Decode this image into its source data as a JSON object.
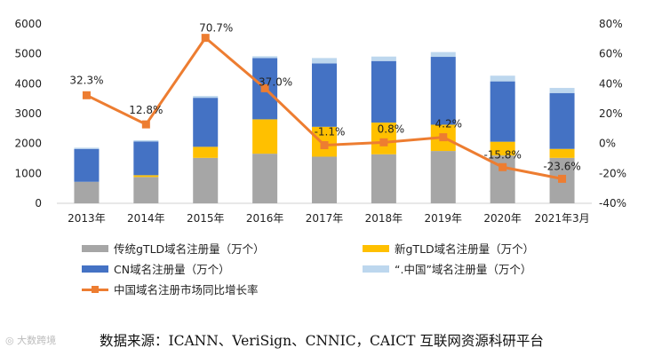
{
  "chart_data": {
    "type": "bar",
    "stacked": true,
    "categories": [
      "2013年",
      "2014年",
      "2015年",
      "2016年",
      "2017年",
      "2018年",
      "2019年",
      "2020年",
      "2021年3月"
    ],
    "series": [
      {
        "name": "传统gTLD域名注册量（万个）",
        "color": "#a6a6a6",
        "values": [
          720,
          880,
          1520,
          1660,
          1560,
          1640,
          1750,
          1600,
          1520
        ]
      },
      {
        "name": "新gTLD域名注册量（万个）",
        "color": "#ffc000",
        "values": [
          0,
          60,
          370,
          1150,
          1000,
          1060,
          880,
          460,
          300
        ]
      },
      {
        "name": "CN域名注册量（万个）",
        "color": "#4472c4",
        "values": [
          1100,
          1130,
          1640,
          2050,
          2120,
          2060,
          2270,
          2020,
          1870
        ]
      },
      {
        "name": "“.中国”域名注册量（万个）",
        "color": "#bdd7ee",
        "values": [
          40,
          40,
          60,
          60,
          180,
          150,
          160,
          190,
          170
        ]
      }
    ],
    "line": {
      "name": "中国域名注册市场同比增长率",
      "color": "#ed7d31",
      "values": [
        32.3,
        12.8,
        70.7,
        37.0,
        -1.1,
        0.8,
        4.2,
        -15.8,
        -23.6
      ],
      "labels": [
        "32.3%",
        "12.8%",
        "70.7%",
        "37.0%",
        "-1.1%",
        "0.8%",
        "4.2%",
        "-15.8%",
        "-23.6%"
      ]
    },
    "y_left": {
      "ylim": [
        0,
        6000
      ],
      "ticks": [
        "0",
        "1000",
        "2000",
        "3000",
        "4000",
        "5000",
        "6000"
      ]
    },
    "y_right": {
      "ylim": [
        -40,
        80
      ],
      "ticks": [
        "-40%",
        "-20%",
        "0%",
        "20%",
        "40%",
        "60%",
        "80%"
      ]
    },
    "legend_position": "bottom"
  },
  "source_text": "数据来源：ICANN、VeriSign、CNNIC，CAICT 互联网资源科研平台",
  "watermark_text": "大数跨境"
}
